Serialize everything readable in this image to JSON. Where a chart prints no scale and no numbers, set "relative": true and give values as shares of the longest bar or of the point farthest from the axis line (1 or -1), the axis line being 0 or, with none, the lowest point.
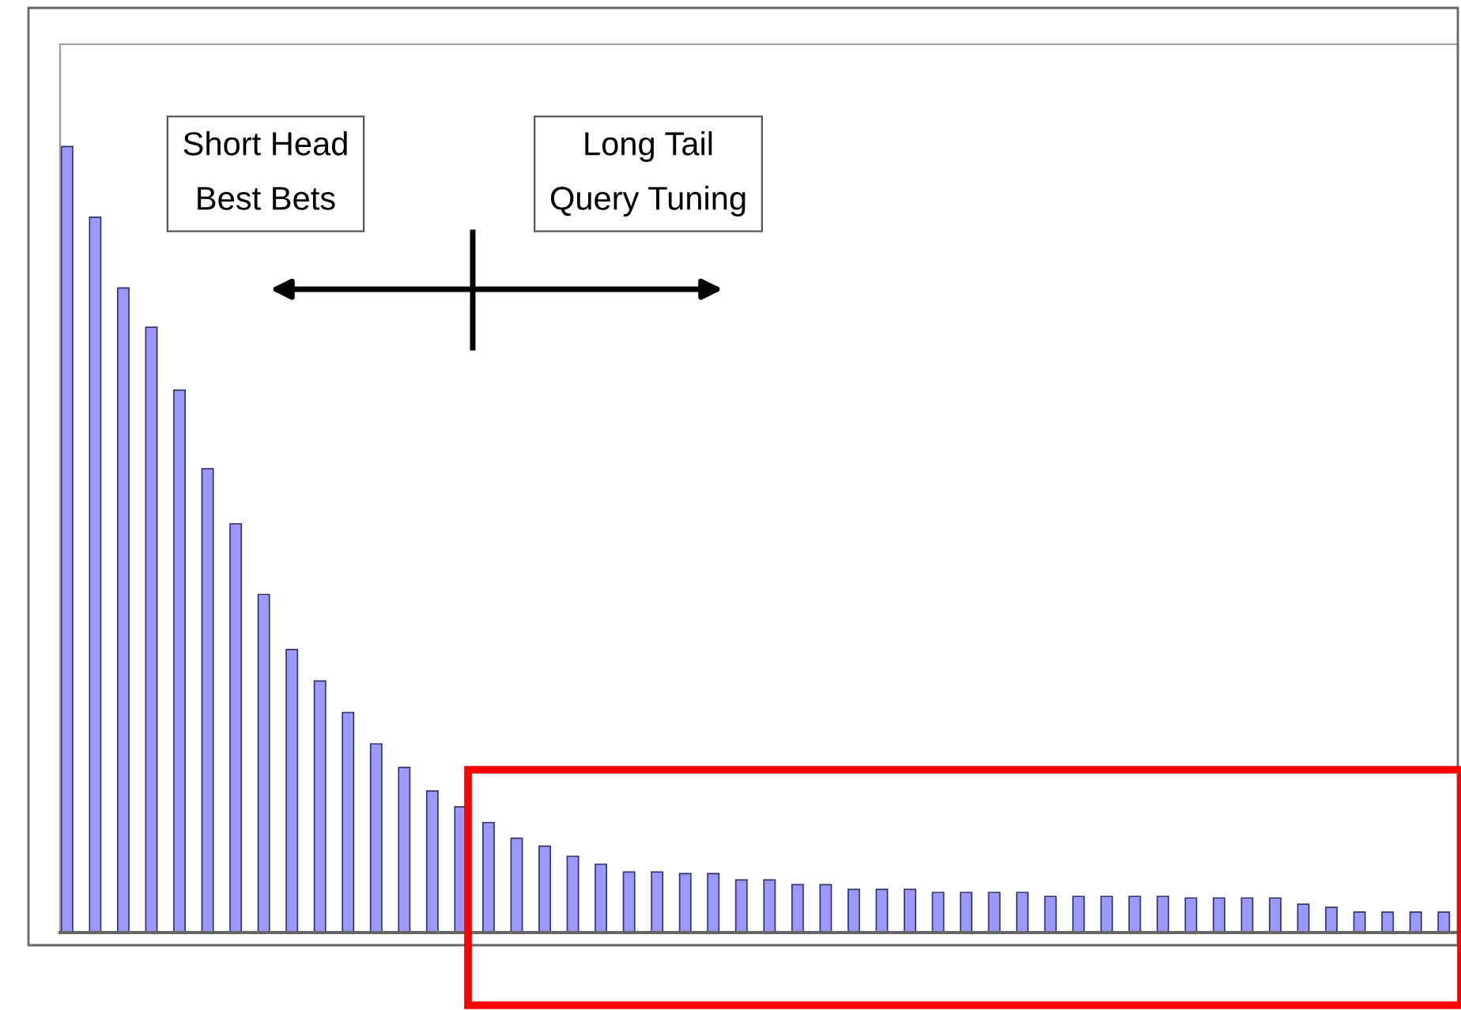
{
  "chart_data": {
    "type": "bar",
    "relative": true,
    "color": "#9999ff",
    "grid": false,
    "categories": [
      null,
      null,
      null,
      null,
      null,
      null,
      null,
      null,
      null,
      null,
      null,
      null,
      null,
      null,
      null,
      null,
      null,
      null,
      null,
      null,
      null,
      null,
      null,
      null,
      null,
      null,
      null,
      null,
      null,
      null,
      null,
      null,
      null,
      null,
      null,
      null,
      null,
      null,
      null,
      null,
      null,
      null,
      null,
      null,
      null,
      null,
      null,
      null,
      null,
      null
    ],
    "values": [
      1,
      0.91,
      0.82,
      0.77,
      0.69,
      0.59,
      0.52,
      0.43,
      0.36,
      0.32,
      0.28,
      0.24,
      0.21,
      0.18,
      0.16,
      0.14,
      0.12,
      0.11,
      0.097,
      0.087,
      0.077,
      0.077,
      0.075,
      0.075,
      0.067,
      0.067,
      0.061,
      0.061,
      0.055,
      0.055,
      0.055,
      0.051,
      0.051,
      0.051,
      0.051,
      0.046,
      0.046,
      0.046,
      0.046,
      0.046,
      0.044,
      0.044,
      0.044,
      0.044,
      0.036,
      0.032,
      0.026,
      0.026,
      0.026,
      0.026
    ],
    "annotations": [
      "Short Head\nBest Bets",
      "Long Tail\nQuery Tuning"
    ]
  }
}
